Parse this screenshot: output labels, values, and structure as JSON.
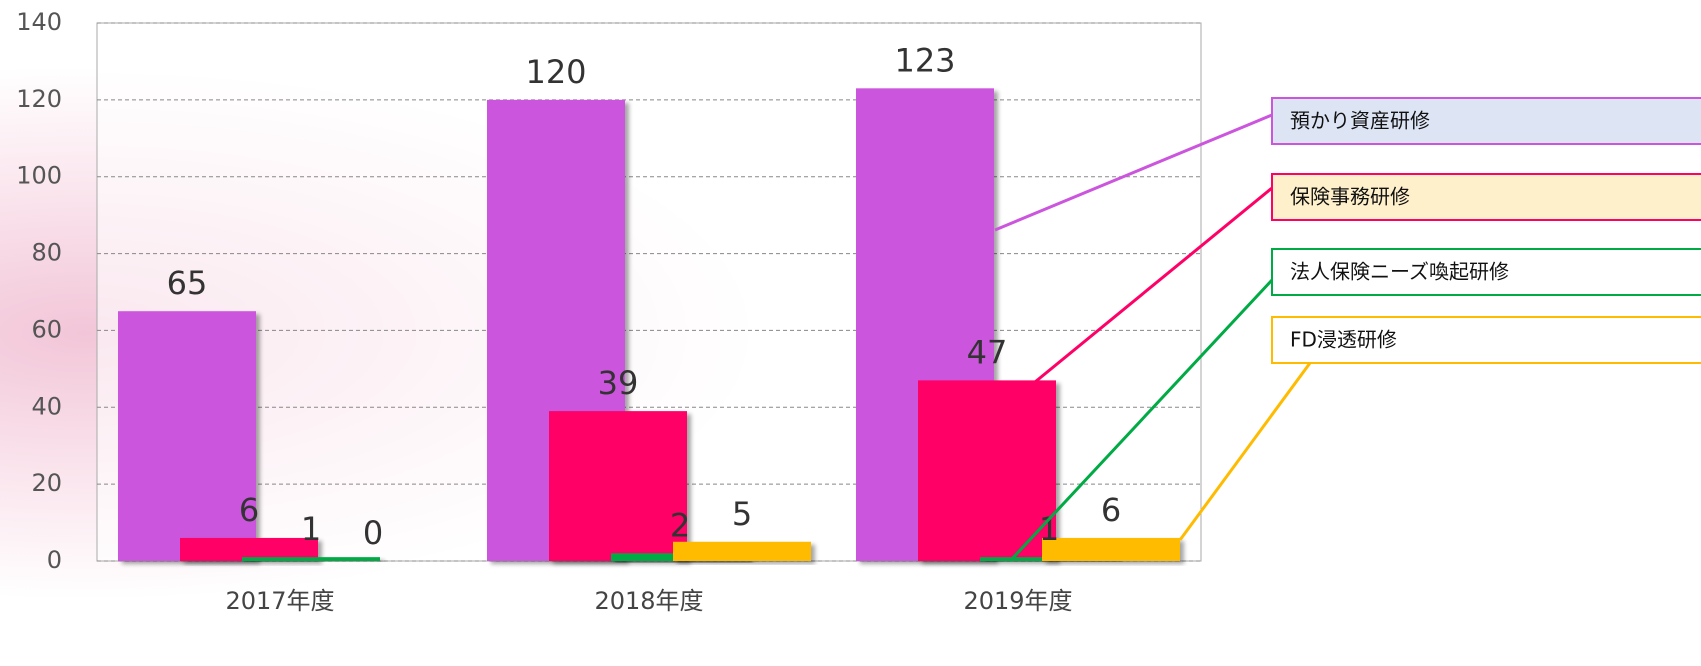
{
  "chart_data": {
    "type": "bar",
    "categories": [
      "2017年度",
      "2018年度",
      "2019年度"
    ],
    "series": [
      {
        "name": "預かり資産研修",
        "color": "#cc55dd",
        "values": [
          65,
          120,
          123
        ]
      },
      {
        "name": "保険事務研修",
        "color": "#ff0066",
        "values": [
          6,
          39,
          47
        ]
      },
      {
        "name": "法人保険ニーズ喚起研修",
        "color": "#00aa44",
        "values": [
          1,
          2,
          1
        ]
      },
      {
        "name": "FD浸透研修",
        "color": "#ffbb00",
        "values": [
          0,
          5,
          6
        ]
      }
    ],
    "ylim": [
      0,
      140
    ],
    "yticks": [
      0,
      20,
      40,
      60,
      80,
      100,
      120,
      140
    ],
    "grid": true,
    "legend": "right"
  }
}
